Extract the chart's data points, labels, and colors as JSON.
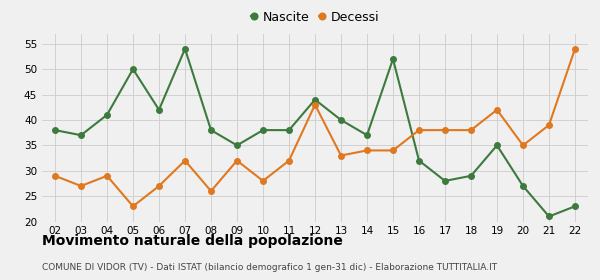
{
  "years": [
    "02",
    "03",
    "04",
    "05",
    "06",
    "07",
    "08",
    "09",
    "10",
    "11",
    "12",
    "13",
    "14",
    "15",
    "16",
    "17",
    "18",
    "19",
    "20",
    "21",
    "22"
  ],
  "nascite": [
    38,
    37,
    41,
    50,
    42,
    54,
    38,
    35,
    38,
    38,
    44,
    40,
    37,
    52,
    32,
    28,
    29,
    35,
    27,
    21,
    23
  ],
  "decessi": [
    29,
    27,
    29,
    23,
    27,
    32,
    26,
    32,
    28,
    32,
    43,
    33,
    34,
    34,
    38,
    38,
    38,
    42,
    35,
    39,
    54
  ],
  "nascite_color": "#3d7a3d",
  "decessi_color": "#e07820",
  "ylim": [
    20,
    57
  ],
  "yticks": [
    20,
    25,
    30,
    35,
    40,
    45,
    50,
    55
  ],
  "title": "Movimento naturale della popolazione",
  "subtitle": "COMUNE DI VIDOR (TV) - Dati ISTAT (bilancio demografico 1 gen-31 dic) - Elaborazione TUTTITALIA.IT",
  "legend_nascite": "Nascite",
  "legend_decessi": "Decessi",
  "bg_color": "#f0f0f0",
  "grid_color": "#cccccc"
}
